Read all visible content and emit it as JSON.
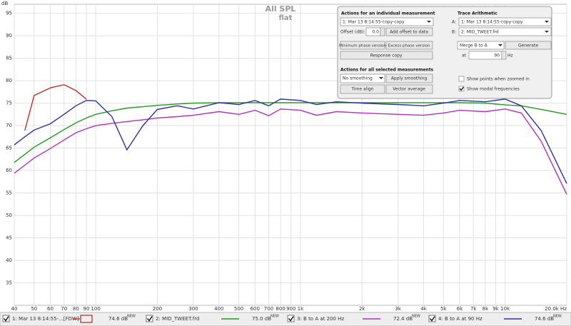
{
  "chart_data": {
    "type": "line",
    "title": "All SPL",
    "subtitle": "flat",
    "ylabel": "dB",
    "x": [
      40,
      45,
      50,
      60,
      70,
      80,
      90,
      100,
      120,
      142,
      170,
      200,
      250,
      300,
      400,
      500,
      600,
      700,
      800,
      1000,
      1200,
      1500,
      2000,
      3000,
      4000,
      5000,
      6000,
      8000,
      10000,
      12000,
      15000,
      20000
    ],
    "xlim": [
      40,
      20000
    ],
    "log_x": true,
    "ylim": [
      30,
      97
    ],
    "grid": true,
    "xticks": [
      40,
      50,
      60,
      70,
      80,
      90,
      100,
      200,
      300,
      400,
      500,
      600,
      700,
      800,
      900,
      {
        "value": 1000,
        "label": "1k"
      },
      {
        "value": 2000,
        "label": "2k"
      },
      {
        "value": 3000,
        "label": "3k"
      },
      {
        "value": 4000,
        "label": "4k"
      },
      {
        "value": 5000,
        "label": "5k"
      },
      {
        "value": 6000,
        "label": "6k"
      },
      {
        "value": 7000,
        "label": "7k"
      },
      {
        "value": 8000,
        "label": "8k"
      },
      {
        "value": 9000,
        "label": "9k"
      },
      {
        "value": 10000,
        "label": "10k"
      },
      {
        "value": 20000,
        "label": "20.0k Hz"
      }
    ],
    "yticks": [
      35,
      40,
      45,
      50,
      55,
      60,
      65,
      70,
      75,
      80,
      85,
      90,
      95
    ],
    "series": [
      {
        "name": "1: Mar 13 8:14:55-...[FDW]",
        "color": "#c0302a",
        "level": "74.6 dB",
        "badge": "NEW",
        "values": [
          null,
          68.9,
          76.7,
          78.4,
          79.1,
          77.8,
          75.9,
          null,
          null,
          null,
          null,
          null,
          null,
          null,
          null,
          null,
          null,
          null,
          null,
          null,
          null,
          null,
          null,
          null,
          null,
          null,
          null,
          null,
          null,
          null,
          null,
          null
        ]
      },
      {
        "name": "2: MID_TWEET.frd",
        "color": "#1f9a1f",
        "level": "75.0 dB",
        "badge": "NEW",
        "values": [
          61.8,
          63.6,
          65.2,
          67.3,
          69.1,
          70.6,
          71.7,
          72.5,
          73.3,
          73.9,
          74.2,
          74.5,
          74.8,
          75,
          75.1,
          75.1,
          75.1,
          75.1,
          75.1,
          75.1,
          75.1,
          75.1,
          75.1,
          75.1,
          75.1,
          75.1,
          75.1,
          75,
          74.6,
          74.4,
          73.6,
          72.5
        ]
      },
      {
        "name": "3: B to A at 200 Hz",
        "color": "#b030c0",
        "level": "72.4 dB",
        "badge": "NEW",
        "values": [
          59.4,
          61.2,
          62.8,
          64.9,
          66.8,
          68.4,
          69.3,
          70,
          70.5,
          70.9,
          71.3,
          71.7,
          72,
          72.3,
          73.1,
          72.5,
          73.4,
          72.2,
          73.7,
          73.4,
          72.3,
          73.1,
          72.8,
          72.5,
          72.3,
          72.8,
          73.4,
          73.1,
          73.7,
          72.8,
          66.5,
          54.7
        ]
      },
      {
        "name": "4: B to A at 90 Hz",
        "color": "#3030a0",
        "level": "74.6 dB",
        "badge": "NEW",
        "values": [
          65.7,
          67.5,
          69,
          70.4,
          72.5,
          74.4,
          75.6,
          75.5,
          72,
          64.6,
          70,
          73.6,
          74.4,
          73.7,
          75.1,
          74.7,
          75.6,
          74.4,
          75.9,
          75.6,
          74.7,
          75.3,
          75,
          74.7,
          74.4,
          75,
          75.6,
          75.3,
          75.9,
          74.4,
          68.9,
          57.1
        ]
      }
    ]
  },
  "panel": {
    "individual": {
      "title": "Actions for an individual measurement",
      "measurement": "1: Mar 13 8:14:55-copy-copy",
      "offset_label": "Offset (dB):",
      "offset_value": "0.0",
      "add_offset": "Add offset to data",
      "min_phase": "Minimum phase version",
      "excess_phase": "Excess phase version",
      "response_copy": "Response copy"
    },
    "selected": {
      "title": "Actions for all selected measurements",
      "smoothing": "No smoothing",
      "apply": "Apply smoothing",
      "time_align": "Time align",
      "vector_average": "Vector average"
    },
    "arithmetic": {
      "title": "Trace Arithmetic",
      "a_label": "A:",
      "a_value": "1: Mar 13 8:14:55-copy-copy",
      "b_label": "B:",
      "b_value": "2: MID_TWEET.frd",
      "operation": "Merge B to A",
      "generate": "Generate",
      "at_label": "at",
      "at_value": "90",
      "unit": "Hz"
    },
    "options": {
      "show_points": "Show points when zoomed in",
      "show_modal": "Show modal frequencies"
    }
  }
}
